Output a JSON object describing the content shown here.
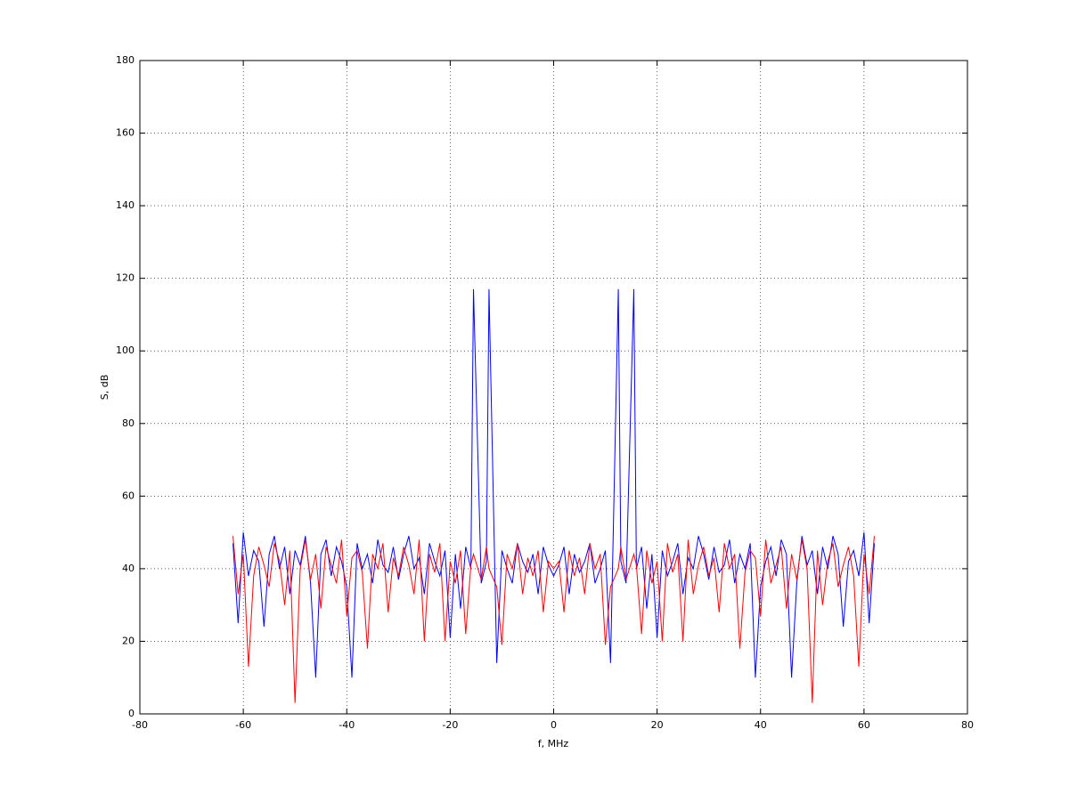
{
  "chart_data": {
    "type": "line",
    "xlabel": "f, MHz",
    "ylabel": "S, dB",
    "xlim": [
      -80,
      80
    ],
    "ylim": [
      0,
      180
    ],
    "xticks": [
      -80,
      -60,
      -40,
      -20,
      0,
      20,
      40,
      60,
      80
    ],
    "yticks": [
      0,
      20,
      40,
      60,
      80,
      100,
      120,
      140,
      160,
      180
    ],
    "grid": true,
    "x": [
      -62,
      -61,
      -60,
      -59,
      -58,
      -57,
      -56,
      -55,
      -54,
      -53,
      -52,
      -51,
      -50,
      -49,
      -48,
      -47,
      -46,
      -45,
      -44,
      -43,
      -42,
      -41,
      -40,
      -39,
      -38,
      -37,
      -36,
      -35,
      -34,
      -33,
      -32,
      -31,
      -30,
      -29,
      -28,
      -27,
      -26,
      -25,
      -24,
      -23,
      -22,
      -21,
      -20,
      -19,
      -18,
      -17,
      -16,
      -15.5,
      -14,
      -13,
      -12.5,
      -11,
      -10,
      -9,
      -8,
      -7,
      -6,
      -5,
      -4,
      -3,
      -2,
      -1,
      0,
      1,
      2,
      3,
      4,
      5,
      6,
      7,
      8,
      9,
      10,
      11,
      12.5,
      13,
      14,
      15.5,
      16,
      17,
      18,
      19,
      20,
      21,
      22,
      23,
      24,
      25,
      26,
      27,
      28,
      29,
      30,
      31,
      32,
      33,
      34,
      35,
      36,
      37,
      38,
      39,
      40,
      41,
      42,
      43,
      44,
      45,
      46,
      47,
      48,
      49,
      50,
      51,
      52,
      53,
      54,
      55,
      56,
      57,
      58,
      59,
      60,
      61,
      62
    ],
    "series": [
      {
        "color": "#0000ff",
        "values": [
          47,
          25,
          50,
          38,
          45,
          42,
          24,
          44,
          49,
          40,
          46,
          33,
          45,
          41,
          49,
          36,
          10,
          44,
          48,
          38,
          46,
          42,
          35,
          10,
          47,
          40,
          44,
          36,
          48,
          41,
          39,
          46,
          37,
          44,
          49,
          40,
          43,
          33,
          47,
          42,
          38,
          45,
          21,
          44,
          29,
          46,
          40,
          117,
          36,
          42,
          117,
          14,
          45,
          40,
          36,
          47,
          42,
          39,
          44,
          33,
          46,
          41,
          38,
          41,
          46,
          33,
          44,
          39,
          42,
          47,
          36,
          40,
          45,
          14,
          117,
          42,
          36,
          117,
          40,
          46,
          29,
          44,
          21,
          45,
          38,
          42,
          47,
          33,
          43,
          40,
          49,
          44,
          37,
          46,
          39,
          41,
          48,
          36,
          44,
          40,
          47,
          10,
          35,
          42,
          46,
          38,
          48,
          44,
          10,
          36,
          49,
          41,
          45,
          33,
          46,
          40,
          49,
          44,
          24,
          42,
          45,
          38,
          50,
          25,
          47
        ]
      },
      {
        "color": "#ff0000",
        "values": [
          49,
          33,
          44,
          13,
          38,
          46,
          41,
          35,
          47,
          42,
          30,
          45,
          3,
          40,
          48,
          37,
          44,
          29,
          46,
          41,
          36,
          48,
          27,
          43,
          45,
          39,
          18,
          44,
          40,
          47,
          28,
          43,
          38,
          46,
          41,
          33,
          48,
          20,
          44,
          39,
          47,
          20,
          42,
          36,
          45,
          22,
          41,
          44,
          37,
          46,
          40,
          35,
          19,
          44,
          40,
          47,
          33,
          43,
          38,
          45,
          28,
          42,
          40,
          42,
          28,
          45,
          38,
          43,
          33,
          47,
          40,
          44,
          19,
          35,
          40,
          46,
          37,
          44,
          41,
          22,
          45,
          36,
          42,
          20,
          47,
          39,
          44,
          20,
          48,
          33,
          41,
          46,
          38,
          43,
          28,
          47,
          40,
          44,
          18,
          39,
          45,
          43,
          27,
          48,
          36,
          41,
          46,
          29,
          44,
          37,
          48,
          40,
          3,
          45,
          30,
          42,
          47,
          35,
          41,
          46,
          38,
          13,
          44,
          33,
          49
        ]
      }
    ]
  }
}
